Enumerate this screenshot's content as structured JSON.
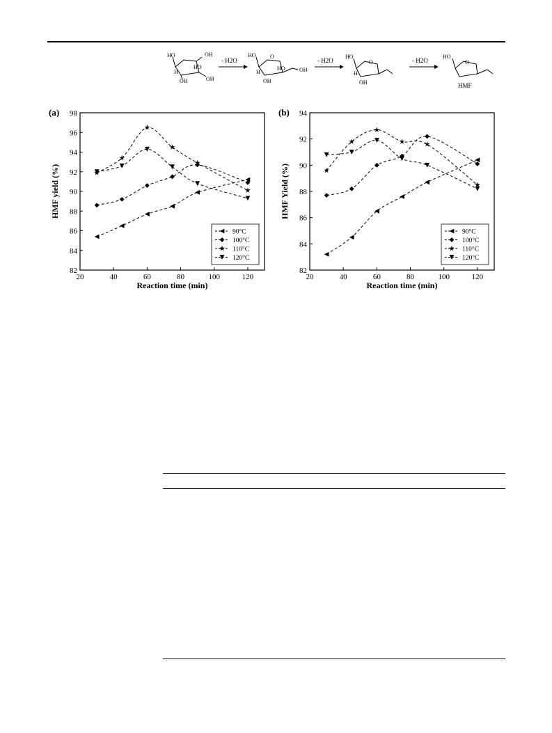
{
  "scheme": {
    "steps": [
      "- H2O",
      "- H2O",
      "- H2O"
    ],
    "product_label": "HMF",
    "labels": {
      "m1": [
        "HO",
        "OH",
        "HO",
        "H",
        "OH",
        "OH"
      ],
      "m2": [
        "HO",
        "O",
        "HO",
        "OH",
        "H",
        "OH"
      ],
      "m3": [
        "HO",
        "O",
        "H",
        "OH"
      ],
      "m4": [
        "HO",
        "O"
      ]
    }
  },
  "chart_data": [
    {
      "type": "line",
      "panel_label": "(a)",
      "xlabel": "Reaction time (min)",
      "ylabel": "HMF yield (%)",
      "xlim": [
        20,
        130
      ],
      "ylim": [
        82,
        98
      ],
      "xticks": [
        20,
        40,
        60,
        80,
        100,
        120
      ],
      "yticks": [
        82,
        84,
        86,
        88,
        90,
        92,
        94,
        96,
        98
      ],
      "x": [
        30,
        45,
        60,
        75,
        90,
        120
      ],
      "legend_position": "bottom-right",
      "series": [
        {
          "name": "90°C",
          "marker": "triangle-left",
          "values": [
            85.4,
            86.5,
            87.7,
            88.5,
            89.9,
            91.2
          ]
        },
        {
          "name": "100°C",
          "marker": "diamond",
          "values": [
            88.6,
            89.2,
            90.6,
            91.5,
            92.7,
            90.9
          ]
        },
        {
          "name": "110°C",
          "marker": "star",
          "values": [
            91.9,
            93.4,
            96.5,
            94.5,
            92.9,
            90.1
          ]
        },
        {
          "name": "120°C",
          "marker": "triangle-down",
          "values": [
            92.0,
            92.6,
            94.3,
            92.5,
            90.8,
            89.3
          ]
        }
      ]
    },
    {
      "type": "line",
      "panel_label": "(b)",
      "xlabel": "Reaction time (min)",
      "ylabel": "HMF Yield (%)",
      "xlim": [
        20,
        130
      ],
      "ylim": [
        82,
        94
      ],
      "xticks": [
        20,
        40,
        60,
        80,
        100,
        120
      ],
      "yticks": [
        82,
        84,
        86,
        88,
        90,
        92,
        94
      ],
      "x": [
        30,
        45,
        60,
        75,
        90,
        120
      ],
      "legend_position": "bottom-right",
      "series": [
        {
          "name": "90°C",
          "marker": "triangle-left",
          "values": [
            83.2,
            84.5,
            86.5,
            87.6,
            88.7,
            90.4
          ]
        },
        {
          "name": "100°C",
          "marker": "diamond",
          "values": [
            87.7,
            88.2,
            90.0,
            90.7,
            92.2,
            90.1
          ]
        },
        {
          "name": "110°C",
          "marker": "star",
          "values": [
            89.6,
            91.8,
            92.7,
            91.8,
            91.6,
            88.5
          ]
        },
        {
          "name": "120°C",
          "marker": "triangle-down",
          "values": [
            90.8,
            91.0,
            91.9,
            90.5,
            90.0,
            88.2
          ]
        }
      ]
    }
  ]
}
